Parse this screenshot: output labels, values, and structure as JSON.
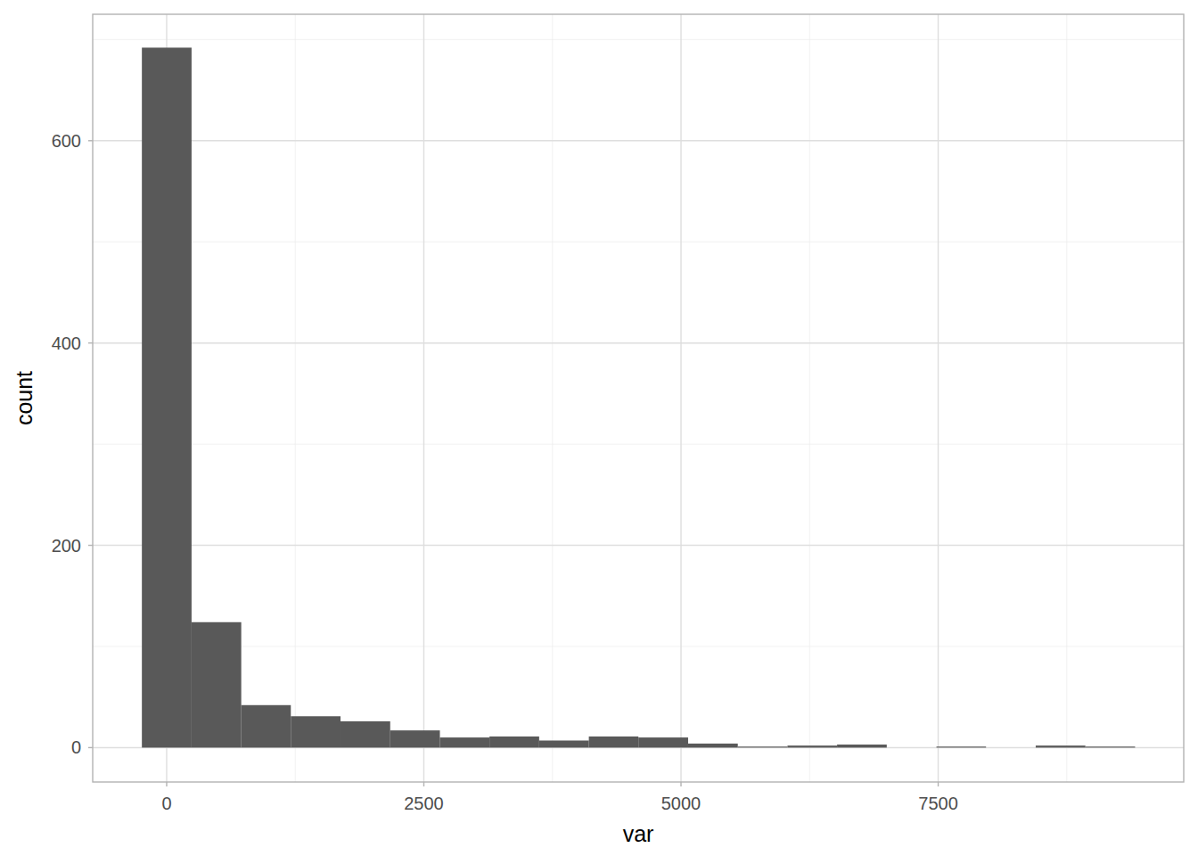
{
  "chart_data": {
    "type": "histogram",
    "x_label": "var",
    "y_label": "count",
    "bins": [
      -241,
      242,
      725,
      1207,
      1690,
      2173,
      2656,
      3138,
      3621,
      4104,
      4586,
      5069,
      5552,
      6035,
      6517,
      7000,
      7483,
      7965,
      8448,
      8931,
      9414
    ],
    "values": [
      692,
      124,
      42,
      31,
      26,
      17,
      10,
      11,
      7,
      11,
      10,
      4,
      1,
      2,
      3,
      0,
      1,
      0,
      2,
      1
    ],
    "color": "#595959",
    "xlim": [
      -719,
      9887
    ],
    "ylim": [
      -34,
      725
    ],
    "xticks": [
      0,
      2500,
      5000,
      7500
    ],
    "yticks": [
      0,
      200,
      400,
      600
    ],
    "grid": true
  }
}
